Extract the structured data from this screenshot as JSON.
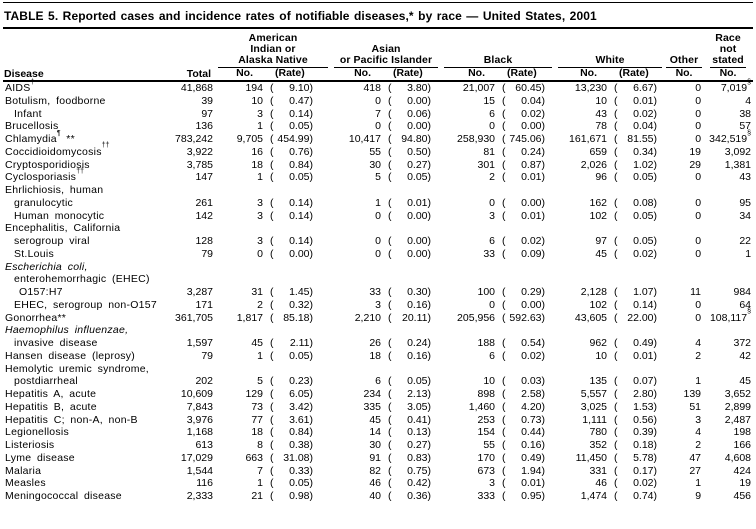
{
  "title": "TABLE 5. Reported cases and incidence rates of notifiable diseases,* by race — United States, 2001",
  "table": {
    "disease_header": "Disease",
    "total_header": "Total",
    "groups": [
      {
        "lines": [
          "American",
          "Indian or",
          "Alaska Native"
        ],
        "subs": [
          "No.",
          "(Rate)"
        ]
      },
      {
        "lines": [
          "Asian",
          "or Pacific Islander"
        ],
        "subs": [
          "No.",
          "(Rate)"
        ]
      },
      {
        "lines": [
          "Black"
        ],
        "subs": [
          "No.",
          "(Rate)"
        ]
      },
      {
        "lines": [
          "White"
        ],
        "subs": [
          "No.",
          "(Rate)"
        ]
      },
      {
        "lines": [
          "Other"
        ],
        "subs": [
          "No."
        ],
        "narrow": true
      },
      {
        "lines": [
          "Race",
          "not",
          "stated"
        ],
        "subs": [
          "No."
        ],
        "narrow": true
      }
    ],
    "rows": [
      {
        "disease": "AIDS",
        "sup": "†",
        "indent": 0,
        "total": "41,868",
        "aian_no": "194",
        "aian_rate": "9.10",
        "api_no": "418",
        "api_rate": "3.80",
        "black_no": "21,007",
        "black_rate": "60.45",
        "white_no": "13,230",
        "white_rate": "6.67",
        "other_no": "0",
        "race_not_stated_no": "7,019",
        "race_not_stated_sup": "§"
      },
      {
        "disease": "Botulism, foodborne",
        "indent": 0,
        "total": "39",
        "aian_no": "10",
        "aian_rate": "0.47",
        "api_no": "0",
        "api_rate": "0.00",
        "black_no": "15",
        "black_rate": "0.04",
        "white_no": "10",
        "white_rate": "0.01",
        "other_no": "0",
        "race_not_stated_no": "4"
      },
      {
        "disease": "Infant",
        "indent": 1,
        "total": "97",
        "aian_no": "3",
        "aian_rate": "0.14",
        "api_no": "7",
        "api_rate": "0.06",
        "black_no": "6",
        "black_rate": "0.02",
        "white_no": "43",
        "white_rate": "0.02",
        "other_no": "0",
        "race_not_stated_no": "38"
      },
      {
        "disease": "Brucellosis",
        "indent": 0,
        "total": "136",
        "aian_no": "1",
        "aian_rate": "0.05",
        "api_no": "0",
        "api_rate": "0.00",
        "black_no": "0",
        "black_rate": "0.00",
        "white_no": "78",
        "white_rate": "0.04",
        "other_no": "0",
        "race_not_stated_no": "57"
      },
      {
        "disease": "Chlamydia",
        "sup": "¶",
        "suffix": " **",
        "indent": 0,
        "total": "783,242",
        "aian_no": "9,705",
        "aian_rate": "454.99",
        "api_no": "10,417",
        "api_rate": "94.80",
        "black_no": "258,930",
        "black_rate": "745.06",
        "white_no": "161,671",
        "white_rate": "81.55",
        "other_no": "0",
        "race_not_stated_no": "342,519",
        "race_not_stated_sup": "§"
      },
      {
        "disease": "Coccidioidomycosis",
        "sup": "††",
        "indent": 0,
        "total": "3,922",
        "aian_no": "16",
        "aian_rate": "0.76",
        "api_no": "55",
        "api_rate": "0.50",
        "black_no": "81",
        "black_rate": "0.24",
        "white_no": "659",
        "white_rate": "0.34",
        "other_no": "19",
        "race_not_stated_no": "3,092"
      },
      {
        "disease": "Cryptosporidiosis",
        "indent": 0,
        "total": "3,785",
        "aian_no": "18",
        "aian_rate": "0.84",
        "api_no": "30",
        "api_rate": "0.27",
        "black_no": "301",
        "black_rate": "0.87",
        "white_no": "2,026",
        "white_rate": "1.02",
        "other_no": "29",
        "race_not_stated_no": "1,381"
      },
      {
        "disease": "Cyclosporiasis",
        "sup": "††",
        "indent": 0,
        "total": "147",
        "aian_no": "1",
        "aian_rate": "0.05",
        "api_no": "5",
        "api_rate": "0.05",
        "black_no": "2",
        "black_rate": "0.01",
        "white_no": "96",
        "white_rate": "0.05",
        "other_no": "0",
        "race_not_stated_no": "43"
      },
      {
        "disease": "Ehrlichiosis, human",
        "indent": 0,
        "label_only": true
      },
      {
        "disease": "granulocytic",
        "indent": 1,
        "total": "261",
        "aian_no": "3",
        "aian_rate": "0.14",
        "api_no": "1",
        "api_rate": "0.01",
        "black_no": "0",
        "black_rate": "0.00",
        "white_no": "162",
        "white_rate": "0.08",
        "other_no": "0",
        "race_not_stated_no": "95"
      },
      {
        "disease": "Human monocytic",
        "indent": 1,
        "total": "142",
        "aian_no": "3",
        "aian_rate": "0.14",
        "api_no": "0",
        "api_rate": "0.00",
        "black_no": "3",
        "black_rate": "0.01",
        "white_no": "102",
        "white_rate": "0.05",
        "other_no": "0",
        "race_not_stated_no": "34"
      },
      {
        "disease": "Encephalitis, California",
        "indent": 0,
        "label_only": true
      },
      {
        "disease": "serogroup viral",
        "indent": 1,
        "total": "128",
        "aian_no": "3",
        "aian_rate": "0.14",
        "api_no": "0",
        "api_rate": "0.00",
        "black_no": "6",
        "black_rate": "0.02",
        "white_no": "97",
        "white_rate": "0.05",
        "other_no": "0",
        "race_not_stated_no": "22"
      },
      {
        "disease": "St.Louis",
        "indent": 1,
        "total": "79",
        "aian_no": "0",
        "aian_rate": "0.00",
        "api_no": "0",
        "api_rate": "0.00",
        "black_no": "33",
        "black_rate": "0.09",
        "white_no": "45",
        "white_rate": "0.02",
        "other_no": "0",
        "race_not_stated_no": "1"
      },
      {
        "disease": "Escherichia coli,",
        "indent": 0,
        "italic": true,
        "label_only": true
      },
      {
        "disease": "enterohemorrhagic (EHEC)",
        "indent": 1,
        "label_only": true
      },
      {
        "disease": "O157:H7",
        "indent": 2,
        "total": "3,287",
        "aian_no": "31",
        "aian_rate": "1.45",
        "api_no": "33",
        "api_rate": "0.30",
        "black_no": "100",
        "black_rate": "0.29",
        "white_no": "2,128",
        "white_rate": "1.07",
        "other_no": "11",
        "race_not_stated_no": "984"
      },
      {
        "disease": "EHEC, serogroup non-O157",
        "indent": 1,
        "total": "171",
        "aian_no": "2",
        "aian_rate": "0.32",
        "api_no": "3",
        "api_rate": "0.16",
        "black_no": "0",
        "black_rate": "0.00",
        "white_no": "102",
        "white_rate": "0.14",
        "other_no": "0",
        "race_not_stated_no": "64"
      },
      {
        "disease": "Gonorrhea",
        "suffix": "**",
        "indent": 0,
        "total": "361,705",
        "aian_no": "1,817",
        "aian_rate": "85.18",
        "api_no": "2,210",
        "api_rate": "20.11",
        "black_no": "205,956",
        "black_rate": "592.63",
        "white_no": "43,605",
        "white_rate": "22.00",
        "other_no": "0",
        "race_not_stated_no": "108,117",
        "race_not_stated_sup": "§"
      },
      {
        "disease": "Haemophilus influenzae,",
        "indent": 0,
        "italic": true,
        "label_only": true
      },
      {
        "disease": "invasive disease",
        "indent": 1,
        "total": "1,597",
        "aian_no": "45",
        "aian_rate": "2.11",
        "api_no": "26",
        "api_rate": "0.24",
        "black_no": "188",
        "black_rate": "0.54",
        "white_no": "962",
        "white_rate": "0.49",
        "other_no": "4",
        "race_not_stated_no": "372"
      },
      {
        "disease": "Hansen disease (leprosy)",
        "indent": 0,
        "total": "79",
        "aian_no": "1",
        "aian_rate": "0.05",
        "api_no": "18",
        "api_rate": "0.16",
        "black_no": "6",
        "black_rate": "0.02",
        "white_no": "10",
        "white_rate": "0.01",
        "other_no": "2",
        "race_not_stated_no": "42"
      },
      {
        "disease": "Hemolytic uremic syndrome,",
        "indent": 0,
        "label_only": true
      },
      {
        "disease": "postdiarrheal",
        "indent": 1,
        "total": "202",
        "aian_no": "5",
        "aian_rate": "0.23",
        "api_no": "6",
        "api_rate": "0.05",
        "black_no": "10",
        "black_rate": "0.03",
        "white_no": "135",
        "white_rate": "0.07",
        "other_no": "1",
        "race_not_stated_no": "45"
      },
      {
        "disease": "Hepatitis A, acute",
        "indent": 0,
        "total": "10,609",
        "aian_no": "129",
        "aian_rate": "6.05",
        "api_no": "234",
        "api_rate": "2.13",
        "black_no": "898",
        "black_rate": "2.58",
        "white_no": "5,557",
        "white_rate": "2.80",
        "other_no": "139",
        "race_not_stated_no": "3,652"
      },
      {
        "disease": "Hepatitis B, acute",
        "indent": 0,
        "total": "7,843",
        "aian_no": "73",
        "aian_rate": "3.42",
        "api_no": "335",
        "api_rate": "3.05",
        "black_no": "1,460",
        "black_rate": "4.20",
        "white_no": "3,025",
        "white_rate": "1.53",
        "other_no": "51",
        "race_not_stated_no": "2,899"
      },
      {
        "disease": "Hepatitis C; non-A, non-B",
        "indent": 0,
        "total": "3,976",
        "aian_no": "77",
        "aian_rate": "3.61",
        "api_no": "45",
        "api_rate": "0.41",
        "black_no": "253",
        "black_rate": "0.73",
        "white_no": "1,111",
        "white_rate": "0.56",
        "other_no": "3",
        "race_not_stated_no": "2,487"
      },
      {
        "disease": "Legionellosis",
        "indent": 0,
        "total": "1,168",
        "aian_no": "18",
        "aian_rate": "0.84",
        "api_no": "14",
        "api_rate": "0.13",
        "black_no": "154",
        "black_rate": "0.44",
        "white_no": "780",
        "white_rate": "0.39",
        "other_no": "4",
        "race_not_stated_no": "198"
      },
      {
        "disease": "Listeriosis",
        "indent": 0,
        "total": "613",
        "aian_no": "8",
        "aian_rate": "0.38",
        "api_no": "30",
        "api_rate": "0.27",
        "black_no": "55",
        "black_rate": "0.16",
        "white_no": "352",
        "white_rate": "0.18",
        "other_no": "2",
        "race_not_stated_no": "166"
      },
      {
        "disease": "Lyme disease",
        "indent": 0,
        "total": "17,029",
        "aian_no": "663",
        "aian_rate": "31.08",
        "api_no": "91",
        "api_rate": "0.83",
        "black_no": "170",
        "black_rate": "0.49",
        "white_no": "11,450",
        "white_rate": "5.78",
        "other_no": "47",
        "race_not_stated_no": "4,608"
      },
      {
        "disease": "Malaria",
        "indent": 0,
        "total": "1,544",
        "aian_no": "7",
        "aian_rate": "0.33",
        "api_no": "82",
        "api_rate": "0.75",
        "black_no": "673",
        "black_rate": "1.94",
        "white_no": "331",
        "white_rate": "0.17",
        "other_no": "27",
        "race_not_stated_no": "424"
      },
      {
        "disease": "Measles",
        "indent": 0,
        "total": "116",
        "aian_no": "1",
        "aian_rate": "0.05",
        "api_no": "46",
        "api_rate": "0.42",
        "black_no": "3",
        "black_rate": "0.01",
        "white_no": "46",
        "white_rate": "0.02",
        "other_no": "1",
        "race_not_stated_no": "19"
      },
      {
        "disease": "Meningococcal disease",
        "indent": 0,
        "total": "2,333",
        "aian_no": "21",
        "aian_rate": "0.98",
        "api_no": "40",
        "api_rate": "0.36",
        "black_no": "333",
        "black_rate": "0.95",
        "white_no": "1,474",
        "white_rate": "0.74",
        "other_no": "9",
        "race_not_stated_no": "456"
      }
    ]
  }
}
